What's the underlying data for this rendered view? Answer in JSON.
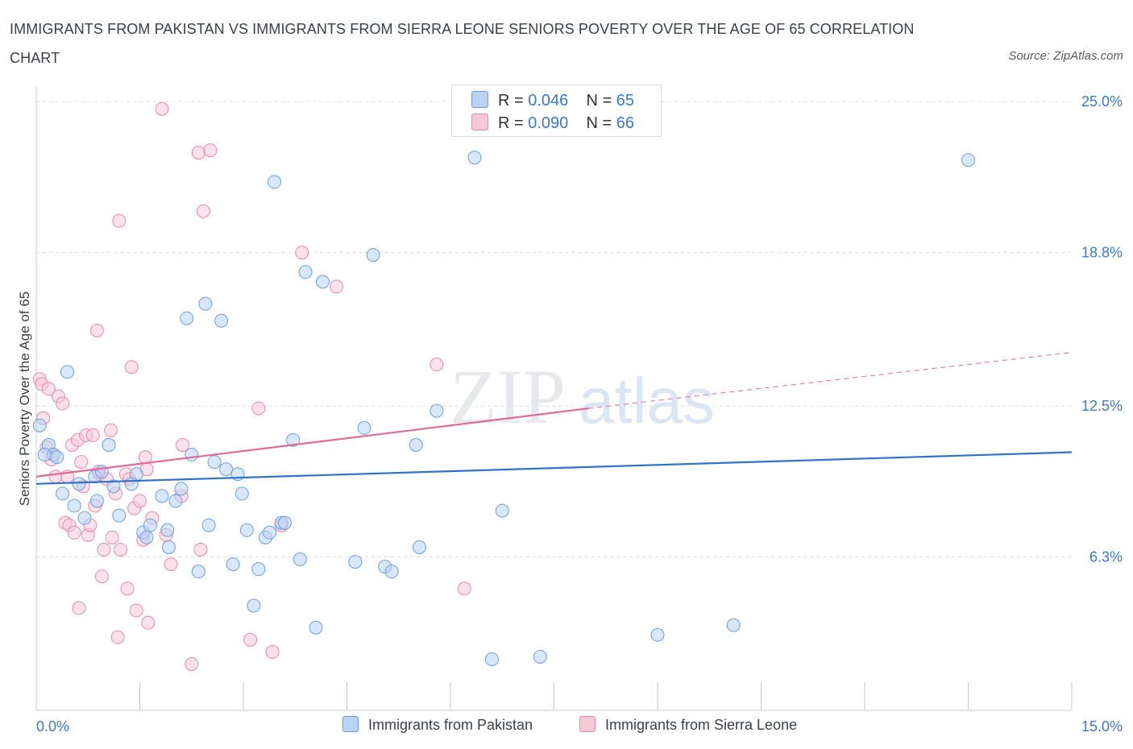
{
  "title": "IMMIGRANTS FROM PAKISTAN VS IMMIGRANTS FROM SIERRA LEONE SENIORS POVERTY OVER THE AGE OF 65 CORRELATION CHART",
  "source": "Source: ZipAtlas.com",
  "watermark": {
    "zip": "ZIP",
    "atlas": "atlas"
  },
  "legend": {
    "rows": [
      {
        "r_label": "R =",
        "r_value": "0.046",
        "n_label": "N =",
        "n_value": "65"
      },
      {
        "r_label": "R =",
        "r_value": "0.090",
        "n_label": "N =",
        "n_value": "66"
      }
    ]
  },
  "bottom_legend": [
    "Immigrants from Pakistan",
    "Immigrants from Sierra Leone"
  ],
  "colors": {
    "pakistan_fill": "#b9d3f5",
    "pakistan_stroke": "#6a9ee0",
    "pakistan_line": "#2f73c9",
    "sierra_fill": "#f8c8d7",
    "sierra_stroke": "#e889a8",
    "sierra_line": "#e06a92",
    "tick_label": "#3b78c8",
    "grid": "#d9dde3"
  },
  "chart_data": {
    "type": "scatter",
    "title": "IMMIGRANTS FROM PAKISTAN VS IMMIGRANTS FROM SIERRA LEONE SENIORS POVERTY OVER THE AGE OF 65 CORRELATION CHART",
    "xlabel": "",
    "ylabel": "Seniors Poverty Over the Age of 65",
    "xlim": [
      0,
      15
    ],
    "ylim": [
      0,
      25.6
    ],
    "x_tick_labels": [
      "0.0%",
      "15.0%"
    ],
    "y_ticks": [
      6.3,
      12.5,
      18.8,
      25.0
    ],
    "y_tick_labels": [
      "6.3%",
      "12.5%",
      "18.8%",
      "25.0%"
    ],
    "grid": "horizontal dashed",
    "legend_position": "top-center",
    "series": [
      {
        "name": "Immigrants from Pakistan",
        "trend": {
          "x": [
            0,
            15
          ],
          "y": [
            9.3,
            10.6
          ]
        },
        "points": [
          [
            0.05,
            11.7
          ],
          [
            0.18,
            10.9
          ],
          [
            0.25,
            10.5
          ],
          [
            0.45,
            13.9
          ],
          [
            0.38,
            8.9
          ],
          [
            0.55,
            8.4
          ],
          [
            0.62,
            9.3
          ],
          [
            0.7,
            7.9
          ],
          [
            0.85,
            9.6
          ],
          [
            0.95,
            9.8
          ],
          [
            0.88,
            8.6
          ],
          [
            1.05,
            10.9
          ],
          [
            1.12,
            9.2
          ],
          [
            1.2,
            8.0
          ],
          [
            1.45,
            9.7
          ],
          [
            1.55,
            7.3
          ],
          [
            1.6,
            7.1
          ],
          [
            1.65,
            7.6
          ],
          [
            1.82,
            8.8
          ],
          [
            1.92,
            6.7
          ],
          [
            1.9,
            7.4
          ],
          [
            2.02,
            8.6
          ],
          [
            2.1,
            9.1
          ],
          [
            2.18,
            16.1
          ],
          [
            2.25,
            10.5
          ],
          [
            2.35,
            5.7
          ],
          [
            2.45,
            16.7
          ],
          [
            2.5,
            7.6
          ],
          [
            2.58,
            10.2
          ],
          [
            2.68,
            16.0
          ],
          [
            2.75,
            9.9
          ],
          [
            2.85,
            6.0
          ],
          [
            2.92,
            9.7
          ],
          [
            2.98,
            8.9
          ],
          [
            3.05,
            7.4
          ],
          [
            3.15,
            4.3
          ],
          [
            3.22,
            5.8
          ],
          [
            3.32,
            7.1
          ],
          [
            3.38,
            7.3
          ],
          [
            3.45,
            21.7
          ],
          [
            3.55,
            7.7
          ],
          [
            3.6,
            7.7
          ],
          [
            3.72,
            11.1
          ],
          [
            3.82,
            6.2
          ],
          [
            3.9,
            18.0
          ],
          [
            4.05,
            3.4
          ],
          [
            4.15,
            17.6
          ],
          [
            4.62,
            6.1
          ],
          [
            4.75,
            11.6
          ],
          [
            4.88,
            18.7
          ],
          [
            5.05,
            5.9
          ],
          [
            5.15,
            5.7
          ],
          [
            5.5,
            10.9
          ],
          [
            5.55,
            6.7
          ],
          [
            5.8,
            12.3
          ],
          [
            6.35,
            22.7
          ],
          [
            6.6,
            2.1
          ],
          [
            6.75,
            8.2
          ],
          [
            7.3,
            2.2
          ],
          [
            9.0,
            3.1
          ],
          [
            10.1,
            3.5
          ],
          [
            13.5,
            22.6
          ],
          [
            0.3,
            10.4
          ],
          [
            0.12,
            10.5
          ],
          [
            1.38,
            9.3
          ]
        ]
      },
      {
        "name": "Immigrants from Sierra Leone",
        "trend": {
          "x": [
            0,
            8.0
          ],
          "y": [
            9.6,
            12.4
          ]
        },
        "trend_dashed": {
          "x": [
            8.0,
            15
          ],
          "y": [
            12.4,
            14.7
          ]
        },
        "points": [
          [
            0.05,
            13.6
          ],
          [
            0.08,
            13.4
          ],
          [
            0.1,
            12.0
          ],
          [
            0.15,
            10.8
          ],
          [
            0.22,
            10.3
          ],
          [
            0.28,
            9.6
          ],
          [
            0.32,
            12.9
          ],
          [
            0.38,
            12.6
          ],
          [
            0.42,
            7.7
          ],
          [
            0.48,
            7.6
          ],
          [
            0.52,
            10.9
          ],
          [
            0.55,
            7.3
          ],
          [
            0.6,
            11.1
          ],
          [
            0.62,
            4.2
          ],
          [
            0.68,
            9.2
          ],
          [
            0.72,
            11.3
          ],
          [
            0.75,
            7.2
          ],
          [
            0.78,
            7.6
          ],
          [
            0.82,
            11.3
          ],
          [
            0.85,
            8.4
          ],
          [
            0.88,
            15.6
          ],
          [
            0.92,
            9.7
          ],
          [
            0.95,
            5.5
          ],
          [
            0.98,
            6.6
          ],
          [
            1.02,
            9.5
          ],
          [
            1.08,
            11.5
          ],
          [
            1.1,
            7.1
          ],
          [
            1.15,
            8.9
          ],
          [
            1.18,
            3.0
          ],
          [
            1.2,
            20.1
          ],
          [
            1.22,
            6.6
          ],
          [
            1.3,
            9.7
          ],
          [
            1.32,
            5.0
          ],
          [
            1.38,
            14.1
          ],
          [
            1.42,
            8.3
          ],
          [
            1.45,
            4.1
          ],
          [
            1.5,
            8.6
          ],
          [
            1.55,
            7.0
          ],
          [
            1.58,
            10.4
          ],
          [
            1.6,
            9.9
          ],
          [
            1.62,
            3.6
          ],
          [
            1.68,
            7.9
          ],
          [
            1.82,
            24.7
          ],
          [
            1.88,
            7.2
          ],
          [
            1.95,
            6.0
          ],
          [
            2.1,
            8.8
          ],
          [
            2.12,
            10.9
          ],
          [
            2.25,
            1.9
          ],
          [
            2.35,
            22.9
          ],
          [
            2.38,
            6.6
          ],
          [
            2.42,
            20.5
          ],
          [
            2.52,
            23.0
          ],
          [
            3.1,
            2.9
          ],
          [
            3.22,
            12.4
          ],
          [
            3.42,
            2.4
          ],
          [
            3.55,
            7.6
          ],
          [
            3.85,
            18.8
          ],
          [
            4.35,
            17.4
          ],
          [
            5.8,
            14.2
          ],
          [
            6.2,
            5.0
          ],
          [
            0.18,
            13.2
          ],
          [
            0.25,
            10.5
          ],
          [
            0.9,
            9.8
          ],
          [
            1.35,
            9.5
          ],
          [
            0.65,
            10.2
          ],
          [
            0.45,
            9.6
          ]
        ]
      }
    ]
  }
}
